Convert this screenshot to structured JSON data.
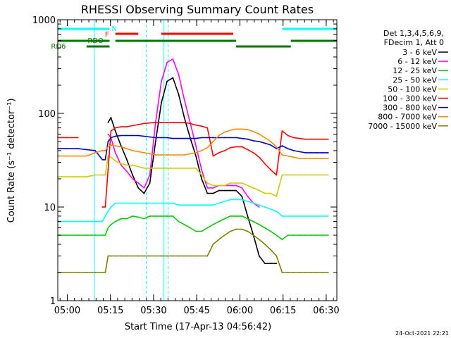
{
  "chart_data": {
    "type": "line",
    "title": "RHESSI Observing Summary Count Rates",
    "xlabel": "Start Time (17-Apr-13 04:56:42)",
    "ylabel": "Count Rate (s⁻¹ detector⁻¹)",
    "yscale": "log",
    "ylim": [
      1,
      1000
    ],
    "xlim_minutes": [
      0,
      97
    ],
    "x_unit": "minutes after 17-Apr-13 04:56:42",
    "x_ticks": [
      {
        "m": 3.3,
        "label": "05:00"
      },
      {
        "m": 18.3,
        "label": "05:15"
      },
      {
        "m": 33.3,
        "label": "05:30"
      },
      {
        "m": 48.3,
        "label": "05:45"
      },
      {
        "m": 63.3,
        "label": "06:00"
      },
      {
        "m": 78.3,
        "label": "06:15"
      },
      {
        "m": 93.3,
        "label": "06:30"
      }
    ],
    "y_ticks": [
      {
        "v": 1,
        "label": "1"
      },
      {
        "v": 10,
        "label": "10"
      },
      {
        "v": 100,
        "label": "100"
      },
      {
        "v": 1000,
        "label": "1000"
      }
    ],
    "legend_header": [
      "Det 1,3,4,5,6,9,",
      "FDecim 1, Att 0"
    ],
    "date_stamp": "24-Oct-2021 22:21",
    "state_labels": [
      {
        "text": "N",
        "color": "#00ffff"
      },
      {
        "text": "F",
        "color": "#ff0000"
      },
      {
        "text": "RDO",
        "color": "#007700"
      },
      {
        "text": "RD6",
        "color": "#007700"
      }
    ],
    "x": [
      0,
      3,
      7,
      10,
      13,
      15.5,
      16.5,
      17.5,
      18.5,
      20,
      22,
      24,
      26,
      28,
      30,
      32,
      34,
      36,
      38,
      40,
      42,
      44,
      46,
      48,
      50,
      52,
      54,
      56,
      58,
      60,
      62,
      64,
      66,
      68,
      70,
      72,
      74,
      76,
      78,
      80,
      82,
      84,
      86,
      88,
      90,
      92,
      94
    ],
    "series": [
      {
        "name": "3 - 6 keV",
        "color": "#000000",
        "values": [
          null,
          null,
          null,
          null,
          null,
          null,
          null,
          80,
          90,
          65,
          45,
          32,
          22,
          16,
          14,
          18,
          50,
          130,
          220,
          240,
          160,
          90,
          55,
          35,
          20,
          14,
          14,
          15,
          15,
          15,
          15,
          13,
          8,
          5,
          3,
          2.5,
          2.5,
          2.5,
          null,
          null,
          null,
          null,
          null,
          null,
          null,
          null,
          null
        ]
      },
      {
        "name": "6 - 12 keV",
        "color": "#ff00ff",
        "values": [
          null,
          null,
          null,
          null,
          null,
          null,
          null,
          60,
          55,
          38,
          28,
          24,
          20,
          18,
          16,
          22,
          80,
          220,
          350,
          380,
          260,
          140,
          80,
          45,
          25,
          16,
          16,
          17,
          17,
          17,
          17,
          16,
          13,
          11,
          10,
          null,
          null,
          null,
          null,
          null,
          null,
          null,
          null,
          null,
          null,
          null,
          null
        ]
      },
      {
        "name": "12 - 25 keV",
        "color": "#00cc00",
        "values": [
          5,
          5,
          5,
          5,
          5,
          5,
          5,
          6,
          6.5,
          7,
          7.5,
          7.5,
          8,
          7.8,
          7.5,
          8,
          8,
          8,
          8,
          8,
          7,
          6.5,
          6,
          5.5,
          5.5,
          6,
          6.5,
          7,
          7.5,
          8,
          8,
          8,
          7.5,
          7,
          6.5,
          6,
          5.5,
          5,
          4.5,
          5,
          5,
          5,
          5,
          5,
          5,
          5,
          5
        ]
      },
      {
        "name": "25 - 50 keV",
        "color": "#00ffff",
        "values": [
          7,
          7,
          7,
          7,
          7,
          7,
          8,
          9,
          10,
          11,
          11,
          11,
          11,
          11,
          11,
          11,
          11,
          11,
          11,
          11,
          10.5,
          10.5,
          10.5,
          10.5,
          10.5,
          10.5,
          10.5,
          11,
          11.5,
          12,
          12,
          12,
          11.5,
          11,
          10.5,
          10,
          9.5,
          9,
          8,
          8,
          8,
          8,
          8,
          8,
          8,
          8,
          8
        ]
      },
      {
        "name": "50 - 100 keV",
        "color": "#cccc00",
        "values": [
          21,
          21,
          21,
          21,
          22,
          22,
          22,
          35,
          34,
          31,
          29,
          28,
          28,
          27,
          26,
          26,
          26,
          26,
          26,
          26,
          26,
          26,
          26,
          26,
          22,
          18,
          17,
          17,
          17,
          18,
          18,
          18,
          17,
          16,
          15,
          14,
          14,
          13,
          22,
          22,
          22,
          22,
          22,
          22,
          22,
          22,
          22
        ]
      },
      {
        "name": "100 - 300 keV",
        "color": "#ff0000",
        "values": [
          55,
          55,
          55,
          null,
          null,
          10,
          10,
          25,
          65,
          70,
          72,
          72,
          74,
          76,
          78,
          79,
          80,
          80,
          80,
          80,
          80,
          80,
          78,
          75,
          73,
          70,
          35,
          38,
          40,
          43,
          44,
          44,
          41,
          38,
          34,
          29,
          25,
          22,
          65,
          58,
          55,
          54,
          53,
          53,
          53,
          53,
          53
        ]
      },
      {
        "name": "300 - 800 keV",
        "color": "#0000cc",
        "values": [
          42,
          42,
          42,
          41,
          40,
          32,
          32,
          50,
          55,
          57,
          58,
          58,
          58,
          58,
          57,
          56,
          55,
          55,
          55,
          54,
          54,
          54,
          54,
          54,
          55,
          55,
          55,
          55,
          55,
          55,
          55,
          54,
          53,
          51,
          50,
          48,
          46,
          42,
          45,
          42,
          40,
          39,
          38,
          38,
          38,
          38,
          38
        ]
      },
      {
        "name": "800 - 7000 keV",
        "color": "#ff8800",
        "values": [
          35,
          35,
          35,
          35,
          38,
          40,
          40,
          44,
          46,
          45,
          44,
          42,
          40,
          39,
          38,
          37,
          36,
          36,
          36,
          36,
          36,
          36,
          37,
          38,
          40,
          43,
          50,
          58,
          63,
          66,
          68,
          68,
          67,
          64,
          60,
          55,
          50,
          44,
          36,
          35,
          34,
          33,
          33,
          33,
          33,
          33,
          33
        ]
      },
      {
        "name": "7000 - 15000 keV",
        "color": "#808000",
        "values": [
          2,
          2,
          2,
          2,
          2,
          2,
          2,
          3,
          3,
          3,
          3,
          3,
          3,
          3,
          3,
          3,
          3,
          3,
          3,
          3,
          3,
          3,
          3,
          3,
          3,
          3,
          4,
          4.5,
          5,
          5.5,
          5.8,
          5.8,
          5.5,
          5,
          4.5,
          4,
          3.5,
          3,
          2,
          2,
          2,
          2,
          2,
          2,
          2,
          2,
          2
        ]
      }
    ]
  }
}
